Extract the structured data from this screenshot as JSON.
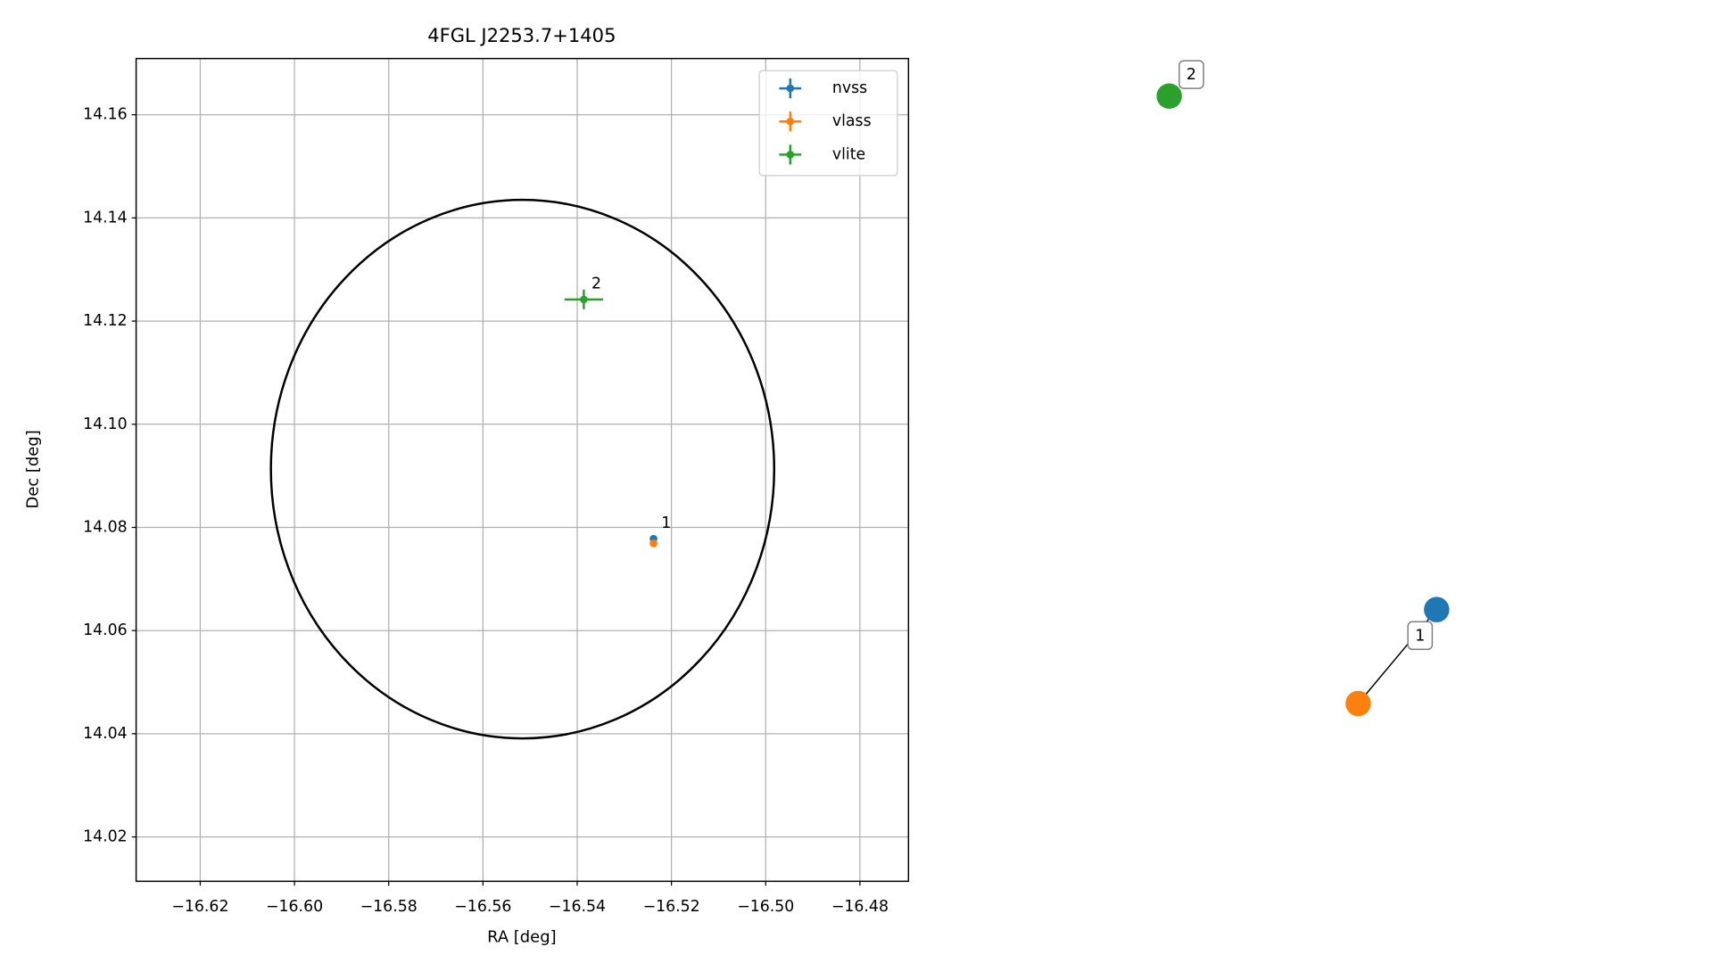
{
  "chart_data": [
    {
      "type": "errorbar",
      "title": "4FGL J2253.7+1405",
      "x_label": "RA [deg]",
      "y_label": "Dec [deg]",
      "xlim": [
        -16.6336,
        -16.4697
      ],
      "ylim": [
        14.0114,
        14.1709
      ],
      "xticks": [
        {
          "value": -16.62,
          "label": "−16.62"
        },
        {
          "value": -16.6,
          "label": "−16.60"
        },
        {
          "value": -16.58,
          "label": "−16.58"
        },
        {
          "value": -16.56,
          "label": "−16.56"
        },
        {
          "value": -16.54,
          "label": "−16.54"
        },
        {
          "value": -16.52,
          "label": "−16.52"
        },
        {
          "value": -16.5,
          "label": "−16.50"
        },
        {
          "value": -16.48,
          "label": "−16.48"
        }
      ],
      "yticks": [
        14.02,
        14.04,
        14.06,
        14.08,
        {
          "value": 14.1,
          "label": "14.10"
        },
        14.12,
        14.14,
        14.16
      ],
      "grid": true,
      "legend": "upper right",
      "series": [
        {
          "name": "nvss",
          "color": "#1f77b4",
          "x": [
            -16.5238
          ],
          "y": [
            14.0778
          ],
          "xerr": [
            0.0003
          ],
          "yerr": [
            0.0003
          ]
        },
        {
          "name": "vlass",
          "color": "#ff7f0e",
          "x": [
            -16.5238
          ],
          "y": [
            14.0769
          ],
          "xerr": [
            0.0002
          ],
          "yerr": [
            0.0002
          ]
        },
        {
          "name": "vlite",
          "color": "#2ca02c",
          "x": [
            -16.5386
          ],
          "y": [
            14.1242
          ],
          "xerr": [
            0.0041
          ],
          "yerr": [
            0.0019
          ]
        }
      ],
      "region": {
        "ra": -16.5516,
        "dec": 14.0913,
        "ra_radius": 0.0534,
        "dec_radius": 0.0522,
        "color": "#000000"
      },
      "annotations": [
        {
          "text": "1",
          "x": -16.5238,
          "y": 14.0778
        },
        {
          "text": "2",
          "x": -16.5386,
          "y": 14.1242
        }
      ]
    },
    {
      "type": "graph",
      "nodes": [
        {
          "color": "#2ca02c"
        },
        {
          "color": "#1f77b4"
        },
        {
          "color": "#ff7f0e"
        }
      ],
      "edges": [
        {
          "source": 1,
          "target": 2
        }
      ],
      "groups": [
        {
          "label": "1",
          "members": [
            1,
            2
          ]
        },
        {
          "label": "2",
          "members": [
            0
          ]
        }
      ]
    }
  ]
}
